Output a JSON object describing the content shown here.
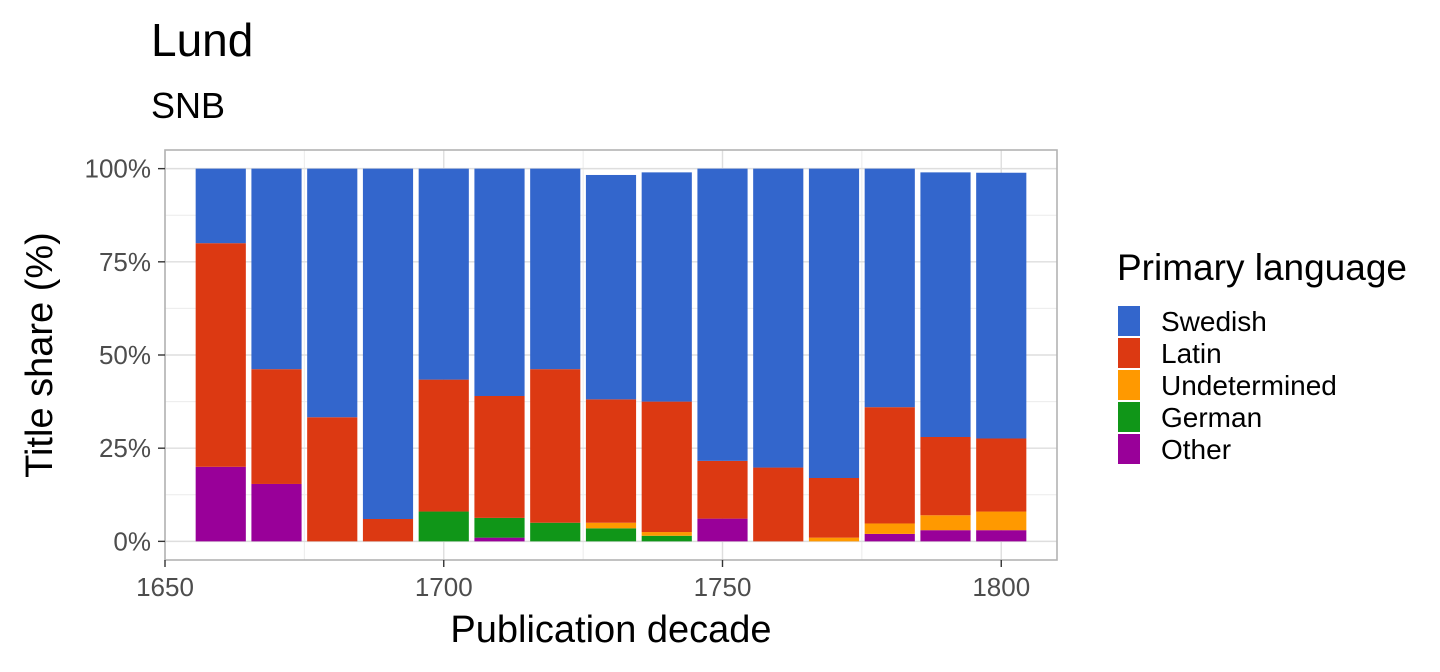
{
  "chart_data": {
    "type": "bar",
    "stacked": true,
    "title": "Lund",
    "subtitle": "SNB",
    "xlabel": "Publication decade",
    "ylabel": "Title share (%)",
    "x_ticks": [
      1650,
      1700,
      1750,
      1800
    ],
    "x_tick_labels": [
      "1650",
      "1700",
      "1750",
      "1800"
    ],
    "y_ticks": [
      0,
      25,
      50,
      75,
      100
    ],
    "y_tick_labels": [
      "0%",
      "25%",
      "50%",
      "75%",
      "100%"
    ],
    "xlim": [
      1650,
      1810
    ],
    "ylim": [
      -5,
      105
    ],
    "grid": true,
    "legend": {
      "title": "Primary language",
      "position": "right"
    },
    "categories": [
      1660,
      1670,
      1680,
      1690,
      1700,
      1710,
      1720,
      1730,
      1740,
      1750,
      1760,
      1770,
      1780,
      1790,
      1800
    ],
    "series": [
      {
        "name": "Other",
        "color": "#990099",
        "values": [
          20,
          15.4,
          0,
          0,
          0,
          1,
          0,
          0,
          0,
          6.1,
          0,
          0,
          2,
          3,
          3
        ]
      },
      {
        "name": "German",
        "color": "#109618",
        "values": [
          0,
          0,
          0,
          0,
          8,
          5.3,
          5,
          3.5,
          1.5,
          0,
          0,
          0,
          0,
          0,
          0
        ]
      },
      {
        "name": "Undetermined",
        "color": "#ff9900",
        "values": [
          0,
          0,
          0,
          0,
          0,
          0,
          0,
          1.5,
          1,
          0,
          0,
          1,
          2.8,
          4,
          5
        ]
      },
      {
        "name": "Latin",
        "color": "#dc3912",
        "values": [
          60,
          30.8,
          33.3,
          6,
          35.4,
          32.7,
          41.2,
          33.1,
          35,
          15.5,
          19.8,
          16,
          31.2,
          21,
          19.6
        ]
      },
      {
        "name": "Swedish",
        "color": "#3366cc",
        "values": [
          20,
          53.8,
          66.7,
          94,
          56.6,
          61,
          53.8,
          60.2,
          61.5,
          78.4,
          80.2,
          83,
          64,
          71,
          71.3
        ]
      }
    ],
    "legend_order": [
      "Swedish",
      "Latin",
      "Undetermined",
      "German",
      "Other"
    ]
  }
}
